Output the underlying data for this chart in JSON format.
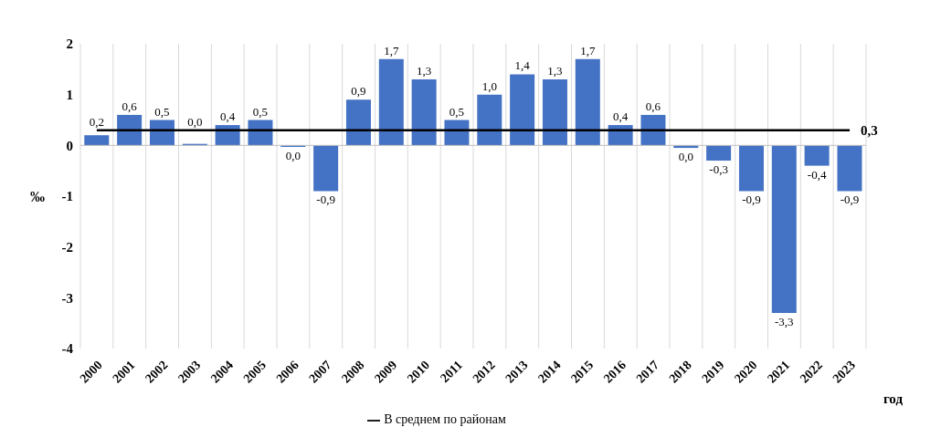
{
  "chart_data": {
    "type": "bar",
    "xlabel": "год",
    "ylabel": "‰",
    "categories": [
      "2000",
      "2001",
      "2002",
      "2003",
      "2004",
      "2005",
      "2006",
      "2007",
      "2008",
      "2009",
      "2010",
      "2011",
      "2012",
      "2013",
      "2014",
      "2015",
      "2016",
      "2017",
      "2018",
      "2019",
      "2020",
      "2021",
      "2022",
      "2023"
    ],
    "series": [
      {
        "color": "#4472c4",
        "values": [
          0.2,
          0.6,
          0.5,
          0.03,
          0.4,
          0.5,
          -0.03,
          -0.9,
          0.9,
          1.7,
          1.3,
          0.5,
          1.0,
          1.4,
          1.3,
          1.7,
          0.4,
          0.6,
          -0.05,
          -0.3,
          -0.9,
          -3.3,
          -0.4,
          -0.9
        ],
        "value_labels": [
          "0,2",
          "0,6",
          "0,5",
          "0,0",
          "0,4",
          "0,5",
          "0,0",
          "-0,9",
          "0,9",
          "1,7",
          "1,3",
          "0,5",
          "1,0",
          "1,4",
          "1,3",
          "1,7",
          "0,4",
          "0,6",
          "0,0",
          "-0,3",
          "-0,9",
          "-3,3",
          "-0,4",
          "-0,9"
        ]
      },
      {
        "type": "line",
        "name": "В среднем по районам",
        "color": "#000000",
        "values": [
          0.3,
          0.3,
          0.3,
          0.3,
          0.3,
          0.3,
          0.3,
          0.3,
          0.3,
          0.3,
          0.3,
          0.3,
          0.3,
          0.3,
          0.3,
          0.3,
          0.3,
          0.3,
          0.3,
          0.3,
          0.3,
          0.3,
          0.3,
          0.3
        ],
        "value_labels": [
          null,
          null,
          null,
          null,
          null,
          null,
          null,
          null,
          null,
          null,
          null,
          null,
          null,
          null,
          null,
          null,
          null,
          null,
          null,
          null,
          null,
          null,
          null,
          "0,3"
        ]
      }
    ],
    "ylim": [
      -4,
      2
    ],
    "yticks": [
      -4,
      -3,
      -2,
      -1,
      0,
      1,
      2
    ],
    "grid": "x",
    "legend": "bottom",
    "marker": "none"
  }
}
